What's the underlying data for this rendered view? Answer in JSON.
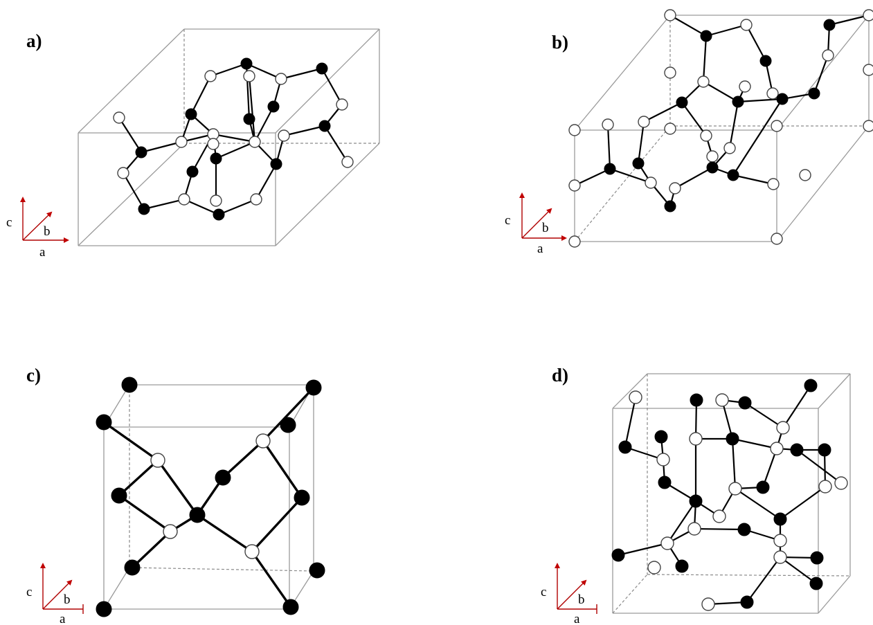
{
  "panels": [
    {
      "id": "a",
      "label": "a)"
    },
    {
      "id": "b",
      "label": "b)"
    },
    {
      "id": "c",
      "label": "c)"
    },
    {
      "id": "d",
      "label": "d)"
    }
  ],
  "axes": {
    "a": "a",
    "b": "b",
    "c": "c"
  },
  "colors": {
    "dark_atom": "#000000",
    "light_atom": "#ffffff",
    "cell_edge": "#9a9a9a",
    "axis_arrow": "#c00000"
  }
}
